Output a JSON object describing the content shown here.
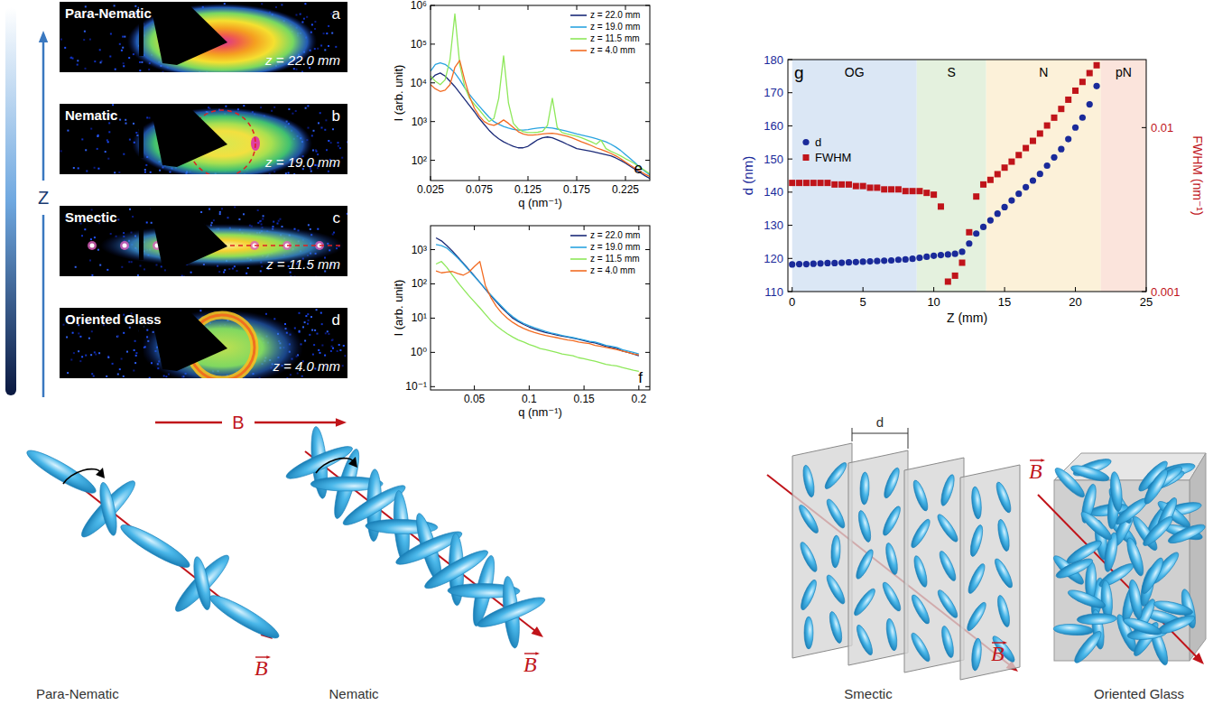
{
  "z_axis_label": "Z",
  "field_label": "B",
  "detector_images": [
    {
      "panel": "a",
      "phase": "Para-Nematic",
      "z": "z = 22.0 mm"
    },
    {
      "panel": "b",
      "phase": "Nematic",
      "z": "z = 19.0 mm"
    },
    {
      "panel": "c",
      "phase": "Smectic",
      "z": "z = 11.5 mm"
    },
    {
      "panel": "d",
      "phase": "Oriented Glass",
      "z": "z = 4.0 mm"
    }
  ],
  "schematics": [
    {
      "label": "Para-Nematic"
    },
    {
      "label": "Nematic"
    },
    {
      "label": "Smectic",
      "spacing_label": "d"
    },
    {
      "label": "Oriented Glass"
    }
  ],
  "chart_data": [
    {
      "type": "line",
      "panel": "e",
      "x_label": "q (nm⁻¹)",
      "y_label": "I (arb. unit)",
      "log": "y",
      "grid": false,
      "legend": "top-right",
      "xlim": [
        0.025,
        0.25
      ],
      "xticks": [
        0.025,
        0.075,
        0.125,
        0.175,
        0.225
      ],
      "ylim": [
        30,
        1000000
      ],
      "yticks": [
        {
          "value": 100,
          "label": "10²"
        },
        {
          "value": 1000,
          "label": "10³"
        },
        {
          "value": 10000,
          "label": "10⁴"
        },
        {
          "value": 100000,
          "label": "10⁵"
        },
        {
          "value": 1000000,
          "label": "10⁶"
        }
      ],
      "x": [
        0.025,
        0.03,
        0.035,
        0.04,
        0.045,
        0.05,
        0.055,
        0.06,
        0.065,
        0.07,
        0.075,
        0.08,
        0.085,
        0.09,
        0.095,
        0.1,
        0.105,
        0.11,
        0.115,
        0.12,
        0.125,
        0.13,
        0.135,
        0.14,
        0.145,
        0.15,
        0.155,
        0.16,
        0.165,
        0.17,
        0.175,
        0.18,
        0.185,
        0.19,
        0.195,
        0.2,
        0.205,
        0.21,
        0.215,
        0.22,
        0.225,
        0.23,
        0.235,
        0.24,
        0.245,
        0.25
      ],
      "series": [
        {
          "name": "z = 22.0 mm",
          "color": "#1b2a78",
          "values": [
            12000,
            16000,
            18000,
            15000,
            11000,
            8000,
            5500,
            3800,
            2600,
            1800,
            1200,
            850,
            600,
            450,
            360,
            300,
            260,
            230,
            210,
            210,
            230,
            280,
            340,
            380,
            400,
            380,
            340,
            300,
            260,
            230,
            200,
            190,
            180,
            170,
            160,
            150,
            140,
            130,
            115,
            100,
            85,
            70,
            58,
            48,
            40,
            34
          ]
        },
        {
          "name": "z = 19.0 mm",
          "color": "#2aa4e0",
          "values": [
            20000,
            30000,
            33000,
            30000,
            24000,
            18000,
            12000,
            7500,
            5000,
            3500,
            2500,
            1800,
            1300,
            1000,
            850,
            750,
            680,
            630,
            600,
            600,
            620,
            650,
            680,
            700,
            700,
            680,
            640,
            600,
            560,
            520,
            480,
            450,
            420,
            390,
            360,
            330,
            300,
            260,
            220,
            180,
            140,
            110,
            85,
            65,
            52,
            42
          ]
        },
        {
          "name": "z = 11.5 mm",
          "color": "#8ee85a",
          "values": [
            15000,
            11000,
            9000,
            12000,
            40000,
            600000,
            30000,
            8000,
            4000,
            2800,
            2000,
            1400,
            1000,
            1200,
            4000,
            50000,
            3000,
            900,
            650,
            550,
            520,
            520,
            530,
            560,
            800,
            4000,
            700,
            520,
            480,
            450,
            420,
            380,
            340,
            300,
            260,
            330,
            200,
            170,
            150,
            130,
            110,
            95,
            80,
            65,
            55,
            45
          ]
        },
        {
          "name": "z = 4.0 mm",
          "color": "#f26b22",
          "values": [
            9000,
            7000,
            6000,
            6500,
            9000,
            25000,
            38000,
            12000,
            4500,
            2200,
            1400,
            1000,
            850,
            800,
            900,
            1100,
            900,
            700,
            550,
            480,
            450,
            450,
            460,
            480,
            490,
            500,
            480,
            450,
            420,
            380,
            340,
            300,
            270,
            240,
            210,
            190,
            170,
            150,
            130,
            110,
            90,
            75,
            62,
            52,
            44,
            38
          ]
        }
      ]
    },
    {
      "type": "line",
      "panel": "f",
      "x_label": "q (nm⁻¹)",
      "y_label": "I (arb. unit)",
      "log": "y",
      "grid": false,
      "legend": "top-right",
      "xlim": [
        0.01,
        0.21
      ],
      "xticks": [
        0.05,
        0.1,
        0.15,
        0.2
      ],
      "ylim": [
        0.08,
        5000
      ],
      "yticks": [
        {
          "value": 0.1,
          "label": "10⁻¹"
        },
        {
          "value": 1,
          "label": "10⁰"
        },
        {
          "value": 10,
          "label": "10¹"
        },
        {
          "value": 100,
          "label": "10²"
        },
        {
          "value": 1000,
          "label": "10³"
        }
      ],
      "x": [
        0.015,
        0.02,
        0.025,
        0.03,
        0.035,
        0.04,
        0.045,
        0.05,
        0.055,
        0.06,
        0.065,
        0.07,
        0.075,
        0.08,
        0.085,
        0.09,
        0.095,
        0.1,
        0.105,
        0.11,
        0.115,
        0.12,
        0.125,
        0.13,
        0.135,
        0.14,
        0.145,
        0.15,
        0.155,
        0.16,
        0.165,
        0.17,
        0.175,
        0.18,
        0.185,
        0.19,
        0.195,
        0.2
      ],
      "series": [
        {
          "name": "z = 22.0 mm",
          "color": "#1b2a78",
          "values": [
            2200,
            1800,
            1300,
            900,
            600,
            400,
            260,
            170,
            110,
            70,
            45,
            30,
            20,
            14,
            10,
            8,
            6.5,
            5.5,
            4.8,
            4.2,
            3.8,
            3.5,
            3.2,
            3.0,
            2.8,
            2.6,
            2.4,
            2.2,
            2.0,
            1.9,
            1.7,
            1.5,
            1.4,
            1.3,
            1.1,
            1.0,
            0.9,
            0.8
          ]
        },
        {
          "name": "z = 19.0 mm",
          "color": "#2aa4e0",
          "values": [
            1400,
            1300,
            1100,
            800,
            560,
            380,
            250,
            165,
            110,
            72,
            48,
            32,
            22,
            15,
            11,
            8.5,
            7,
            6,
            5.2,
            4.6,
            4.1,
            3.7,
            3.4,
            3.1,
            2.9,
            2.7,
            2.5,
            2.3,
            2.1,
            2.0,
            1.8,
            1.6,
            1.5,
            1.4,
            1.2,
            1.1,
            1.0,
            0.9
          ]
        },
        {
          "name": "z = 11.5 mm",
          "color": "#8ee85a",
          "values": [
            380,
            450,
            300,
            180,
            110,
            70,
            45,
            30,
            20,
            13,
            8.5,
            6,
            4.5,
            3.5,
            2.8,
            2.3,
            2.0,
            1.7,
            1.5,
            1.3,
            1.2,
            1.1,
            1.0,
            0.9,
            0.85,
            0.8,
            0.7,
            0.65,
            0.6,
            0.55,
            0.5,
            0.45,
            0.42,
            0.4,
            0.36,
            0.33,
            0.3,
            0.28
          ]
        },
        {
          "name": "z = 4.0 mm",
          "color": "#f26b22",
          "values": [
            240,
            210,
            220,
            230,
            200,
            180,
            220,
            320,
            450,
            90,
            40,
            22,
            14,
            10,
            7.5,
            6,
            5,
            4.3,
            3.8,
            3.4,
            3.1,
            2.9,
            2.7,
            2.5,
            2.3,
            2.2,
            2.0,
            1.9,
            1.8,
            1.6,
            1.5,
            1.4,
            1.3,
            1.2,
            1.1,
            1.0,
            0.9,
            0.85
          ]
        }
      ]
    },
    {
      "type": "scatter",
      "panel": "g",
      "x_label": "Z (mm)",
      "y_label": "d (nm)",
      "y2_label": "FWHM (nm⁻¹)",
      "grid": false,
      "legend": "top-left",
      "xlim": [
        -0.3,
        25
      ],
      "xticks": [
        0,
        5,
        10,
        15,
        20,
        25
      ],
      "ylim": [
        110,
        180
      ],
      "yticks": [
        110,
        120,
        130,
        140,
        150,
        160,
        170,
        180
      ],
      "y2lim": [
        0.001,
        0.026
      ],
      "y2ticks": [
        0.001,
        0.01
      ],
      "regions": [
        {
          "label": "OG",
          "start": 0,
          "end": 8.8,
          "color": "#dbe7f5"
        },
        {
          "label": "S",
          "start": 8.8,
          "end": 13.7,
          "color": "#e4f1de"
        },
        {
          "label": "N",
          "start": 13.7,
          "end": 21.8,
          "color": "#fcf1d9"
        },
        {
          "label": "pN",
          "start": 21.8,
          "end": 25,
          "color": "#fbe4dc"
        }
      ],
      "x": [
        0,
        0.5,
        1,
        1.5,
        2,
        2.5,
        3,
        3.5,
        4,
        4.5,
        5,
        5.5,
        6,
        6.5,
        7,
        7.5,
        8,
        8.5,
        9,
        9.5,
        10,
        10.5,
        11,
        11.5,
        12,
        12.5,
        13,
        13.5,
        14,
        14.5,
        15,
        15.5,
        16,
        16.5,
        17,
        17.5,
        18,
        18.5,
        19,
        19.5,
        20,
        20.5,
        21,
        21.5
      ],
      "series": [
        {
          "name": "d",
          "color": "#1a2a9a",
          "marker": "circle",
          "values": [
            118.2,
            118.3,
            118.3,
            118.4,
            118.5,
            118.6,
            118.6,
            118.7,
            118.8,
            118.9,
            119.0,
            119.1,
            119.2,
            119.3,
            119.4,
            119.6,
            119.7,
            119.9,
            120.2,
            120.5,
            120.8,
            121.0,
            121.2,
            121.4,
            122.0,
            124.5,
            127.5,
            129.5,
            131.5,
            133.5,
            135.5,
            137.5,
            139.5,
            141.5,
            143.5,
            145.5,
            148,
            150.5,
            153,
            156,
            159.5,
            162.5,
            166.5,
            172
          ]
        },
        {
          "name": "FWHM",
          "color": "#c0141a",
          "marker": "square",
          "axis": "y2",
          "log": "y",
          "values": [
            0.0046,
            0.0046,
            0.0046,
            0.0046,
            0.0046,
            0.0046,
            0.0045,
            0.0045,
            0.0045,
            0.0044,
            0.0044,
            0.0043,
            0.0043,
            0.0042,
            0.0042,
            0.0042,
            0.0041,
            0.0041,
            0.0041,
            0.004,
            0.0039,
            0.0033,
            0.00115,
            0.00125,
            0.0015,
            0.0023,
            0.0038,
            0.0045,
            0.0048,
            0.0052,
            0.0057,
            0.0062,
            0.0068,
            0.0075,
            0.0083,
            0.0092,
            0.0103,
            0.0115,
            0.013,
            0.0148,
            0.0168,
            0.019,
            0.0215,
            0.024
          ]
        }
      ]
    }
  ]
}
